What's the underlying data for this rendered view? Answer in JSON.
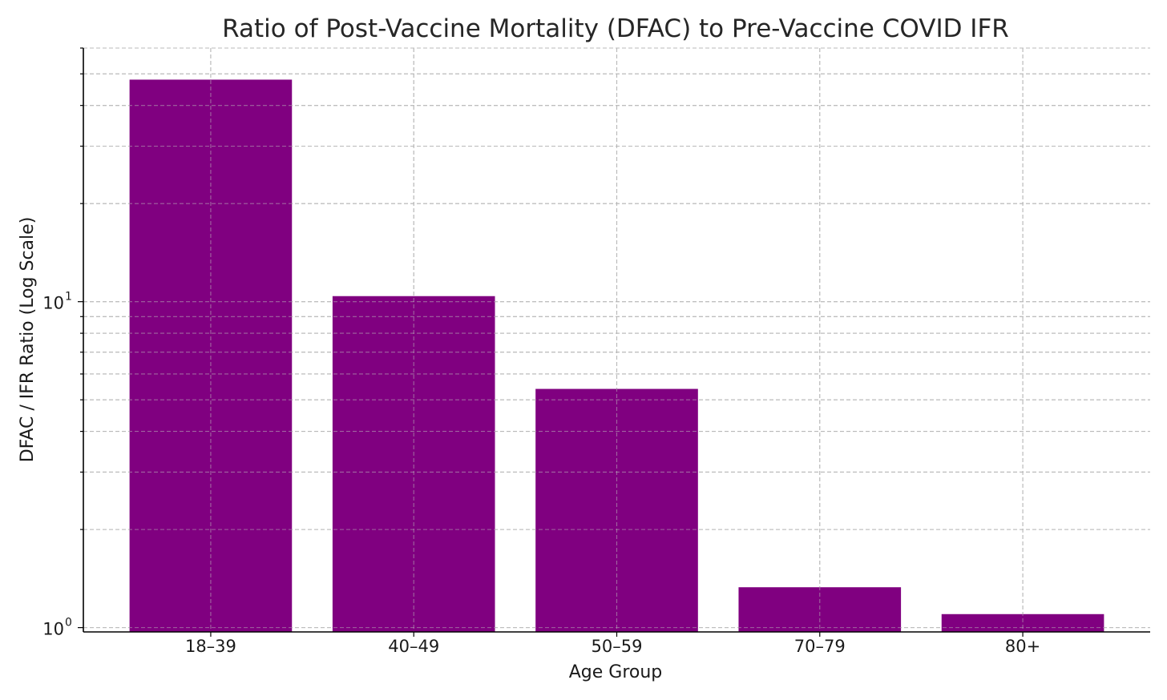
{
  "chart_data": {
    "type": "bar",
    "title": "Ratio of Post-Vaccine Mortality (DFAC) to Pre-Vaccine COVID IFR",
    "xlabel": "Age Group",
    "ylabel": "DFAC / IFR Ratio (Log Scale)",
    "y_scale": "log",
    "ylim": [
      0.97,
      60
    ],
    "grid": true,
    "grid_style": "dashed",
    "categories": [
      "18–39",
      "40–49",
      "50–59",
      "70–79",
      "80+"
    ],
    "values": [
      48,
      10.4,
      5.4,
      1.33,
      1.1
    ],
    "bar_color": "#800080",
    "y_ticks": [
      {
        "base": "10",
        "exp": "0",
        "value": 1
      },
      {
        "base": "10",
        "exp": "1",
        "value": 10
      }
    ],
    "y_minor_ticks": [
      2,
      3,
      4,
      5,
      6,
      7,
      8,
      9,
      20,
      30,
      40,
      50,
      60
    ]
  }
}
